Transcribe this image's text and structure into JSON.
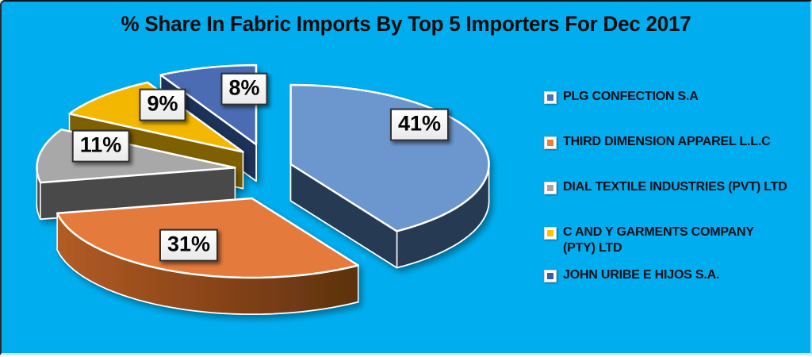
{
  "title": "% Share In Fabric Imports By Top 5 Importers For Dec 2017",
  "background_color": "#00AEEF",
  "chart_data": {
    "type": "pie",
    "title": "% Share In Fabric Imports By Top 5 Importers For Dec 2017",
    "effect": "3d-exploded",
    "start_angle_deg": 0,
    "direction": "clockwise",
    "legend_position": "right",
    "unit": "percent",
    "labels": [
      "PLG CONFECTION S.A",
      "THIRD DIMENSION APPAREL L.L.C",
      "DIAL TEXTILE INDUSTRIES (PVT) LTD",
      "C AND Y GARMENTS COMPANY\n(PTY) LTD",
      "JOHN URIBE E HIJOS S.A."
    ],
    "values": [
      41,
      31,
      11,
      9,
      8
    ],
    "data_labels": [
      "41%",
      "31%",
      "11%",
      "9%",
      "8%"
    ],
    "colors_top": [
      "#6C96CE",
      "#E57A3C",
      "#A8A8A8",
      "#F3B705",
      "#4B6CB3"
    ],
    "colors_side": [
      "#253B52",
      "#8A4519",
      "#484848",
      "#7F6000",
      "#1F3358"
    ],
    "legend_colors": [
      "#4472C4",
      "#ED7D31",
      "#A5A5A5",
      "#FFC000",
      "#3A5BA5"
    ]
  }
}
